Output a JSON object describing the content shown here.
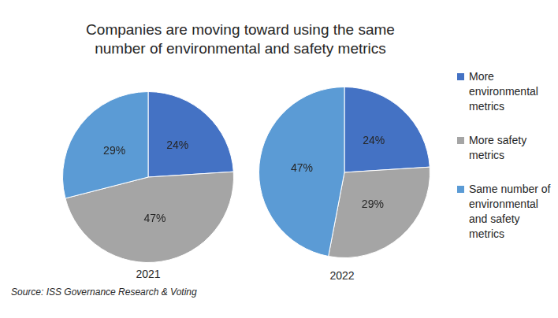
{
  "title": "Companies are moving toward using the same number of environmental and safety metrics",
  "note": "Source: ISS Governance Research & Voting",
  "chart_data": [
    {
      "type": "pie",
      "title": "2021",
      "legend": "right",
      "data_labels": true,
      "categories": [
        "More environmental metrics",
        "More safety metrics",
        "Same number of environmental and safety metrics"
      ],
      "values": [
        24,
        47,
        29
      ],
      "value_labels": [
        "24%",
        "47%",
        "29%"
      ],
      "colors": [
        "#4472c4",
        "#a5a5a5",
        "#5b9bd5"
      ]
    },
    {
      "type": "pie",
      "title": "2022",
      "legend": "right",
      "data_labels": true,
      "categories": [
        "More environmental metrics",
        "More safety metrics",
        "Same number of environmental and safety metrics"
      ],
      "values": [
        24,
        29,
        47
      ],
      "value_labels": [
        "24%",
        "29%",
        "47%"
      ],
      "colors": [
        "#4472c4",
        "#a5a5a5",
        "#5b9bd5"
      ]
    }
  ]
}
